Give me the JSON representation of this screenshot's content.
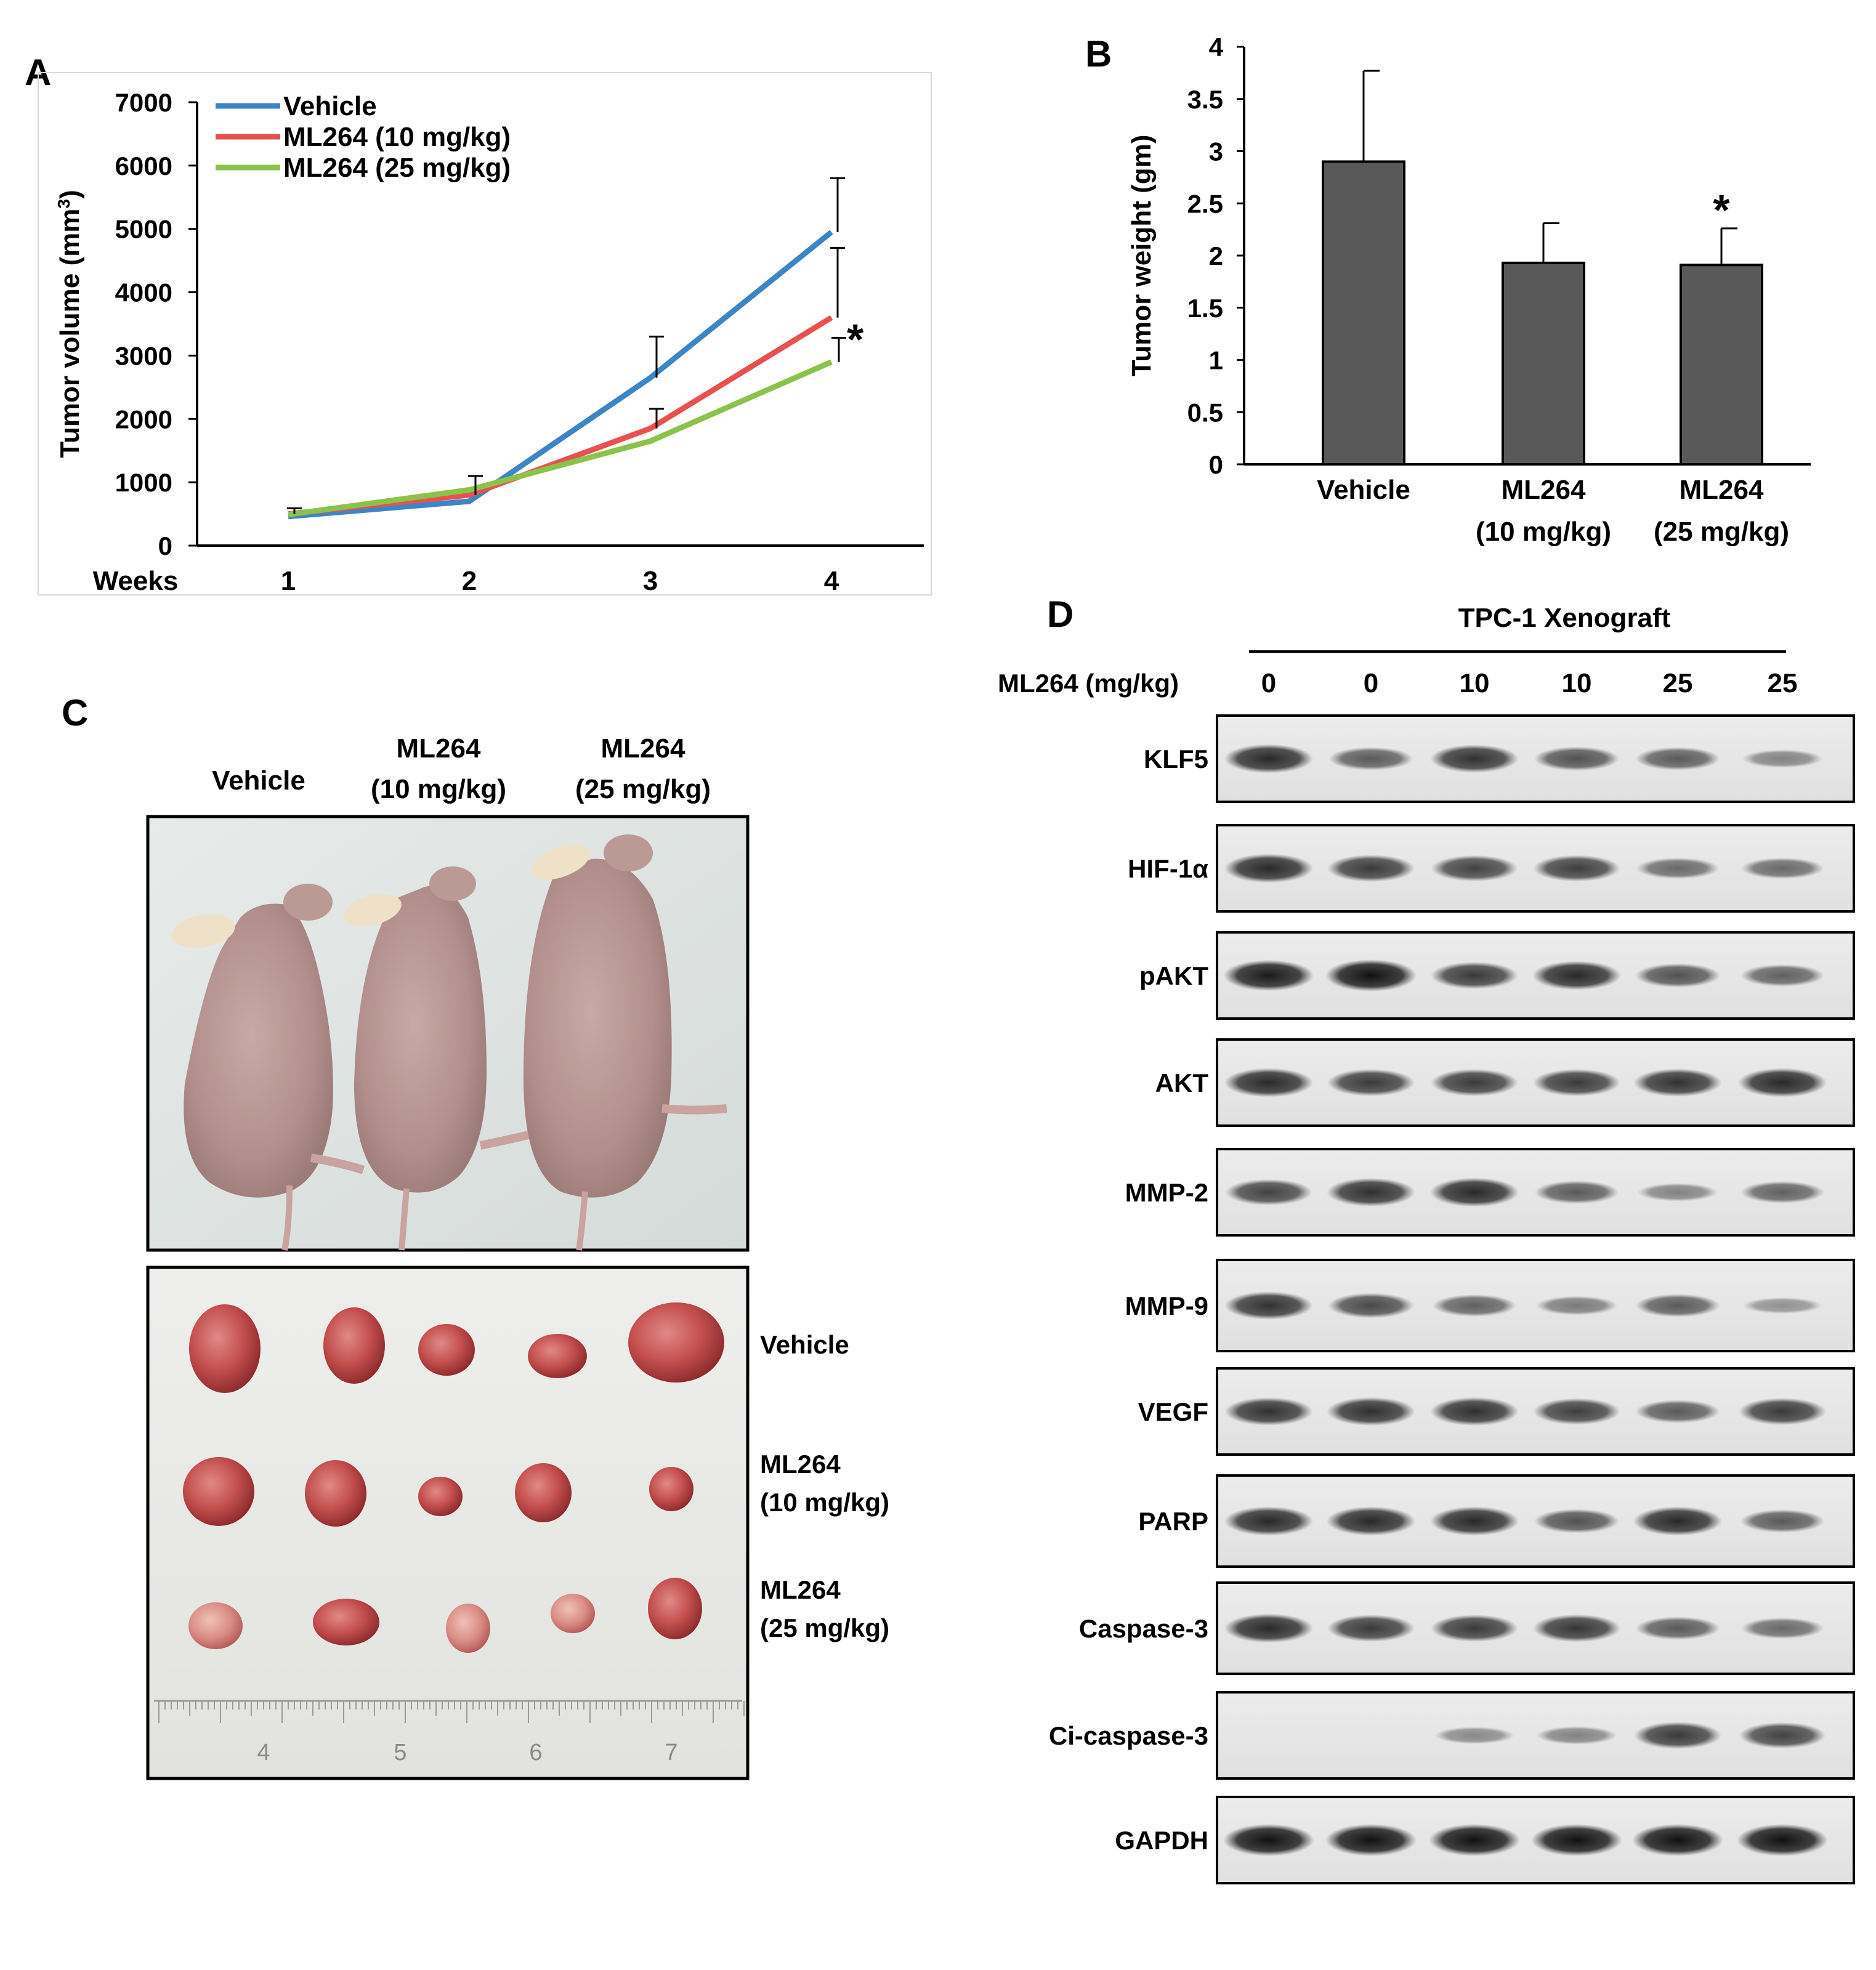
{
  "panels": {
    "A": "A",
    "B": "B",
    "C": "C",
    "D": "D"
  },
  "colors": {
    "vehicle": "#3d85c6",
    "ml10": "#e8514f",
    "ml25": "#8bc34a",
    "bar": "#595959"
  },
  "chart_data": [
    {
      "id": "A",
      "type": "line",
      "title": "",
      "xlabel": "Weeks",
      "ylabel_main": "Tumor volume (mm",
      "ylabel_sup": "3",
      "ylabel_end": ")",
      "categories": [
        "1",
        "2",
        "3",
        "4"
      ],
      "ylim": [
        0,
        7000
      ],
      "yticks": [
        "0",
        "1000",
        "2000",
        "3000",
        "4000",
        "5000",
        "6000",
        "7000"
      ],
      "legend_position": "top-left",
      "significance_label": "*",
      "series": [
        {
          "name": "Vehicle",
          "values": [
            460,
            700,
            2650,
            4950
          ],
          "error": [
            0,
            0,
            650,
            850
          ]
        },
        {
          "name": "ML264 (10 mg/kg)",
          "values": [
            500,
            800,
            1850,
            3600
          ],
          "error": [
            90,
            300,
            310,
            1100
          ]
        },
        {
          "name": "ML264 (25 mg/kg)",
          "values": [
            490,
            880,
            1650,
            2900
          ],
          "error": [
            0,
            0,
            0,
            380
          ]
        }
      ]
    },
    {
      "id": "B",
      "type": "bar",
      "title": "",
      "ylabel": "Tumor weight (gm)",
      "ylim": [
        0,
        4
      ],
      "yticks": [
        "0",
        "0.5",
        "1",
        "1.5",
        "2",
        "2.5",
        "3",
        "3.5",
        "4"
      ],
      "categories": [
        {
          "line1": "Vehicle",
          "line2": ""
        },
        {
          "line1": "ML264",
          "line2": "(10 mg/kg)"
        },
        {
          "line1": "ML264",
          "line2": "(25 mg/kg)"
        }
      ],
      "values": [
        2.9,
        1.93,
        1.91
      ],
      "errors": [
        0.87,
        0.38,
        0.35
      ],
      "significance": [
        "",
        "",
        "*"
      ]
    }
  ],
  "panelC": {
    "mice_labels": [
      {
        "line1": "Vehicle",
        "line2": ""
      },
      {
        "line1": "ML264",
        "line2": "(10 mg/kg)"
      },
      {
        "line1": "ML264",
        "line2": "(25 mg/kg)"
      }
    ],
    "tumor_rows": [
      {
        "line1": "Vehicle",
        "line2": ""
      },
      {
        "line1": "ML264",
        "line2": "(10 mg/kg)"
      },
      {
        "line1": "ML264",
        "line2": "(25 mg/kg)"
      }
    ],
    "ruler_numbers": [
      "4",
      "5",
      "6",
      "7"
    ]
  },
  "panelD": {
    "header": "TPC-1 Xenograft",
    "dose_label": "ML264 (mg/kg)",
    "doses": [
      "0",
      "0",
      "10",
      "10",
      "25",
      "25"
    ],
    "blots": [
      {
        "label": "KLF5",
        "intensity": [
          0.85,
          0.55,
          0.8,
          0.6,
          0.55,
          0.3
        ]
      },
      {
        "label": "HIF-1α",
        "intensity": [
          0.85,
          0.75,
          0.7,
          0.72,
          0.45,
          0.45
        ]
      },
      {
        "label": "pAKT",
        "intensity": [
          0.95,
          1.0,
          0.75,
          0.85,
          0.6,
          0.5
        ]
      },
      {
        "label": "AKT",
        "intensity": [
          0.85,
          0.75,
          0.75,
          0.75,
          0.8,
          0.85
        ]
      },
      {
        "label": "MMP-2",
        "intensity": [
          0.7,
          0.82,
          0.85,
          0.55,
          0.3,
          0.5
        ]
      },
      {
        "label": "MMP-9",
        "intensity": [
          0.8,
          0.65,
          0.5,
          0.35,
          0.55,
          0.2
        ]
      },
      {
        "label": "VEGF",
        "intensity": [
          0.8,
          0.82,
          0.82,
          0.72,
          0.55,
          0.75
        ]
      },
      {
        "label": "PARP",
        "intensity": [
          0.85,
          0.85,
          0.85,
          0.6,
          0.85,
          0.55
        ]
      },
      {
        "label": "Caspase-3",
        "intensity": [
          0.85,
          0.75,
          0.75,
          0.78,
          0.55,
          0.45
        ]
      },
      {
        "label": "Ci-caspase-3",
        "intensity": [
          0.0,
          0.0,
          0.25,
          0.3,
          0.75,
          0.7
        ]
      },
      {
        "label": "GAPDH",
        "intensity": [
          1.0,
          1.0,
          1.0,
          1.0,
          1.0,
          1.0
        ]
      }
    ]
  }
}
